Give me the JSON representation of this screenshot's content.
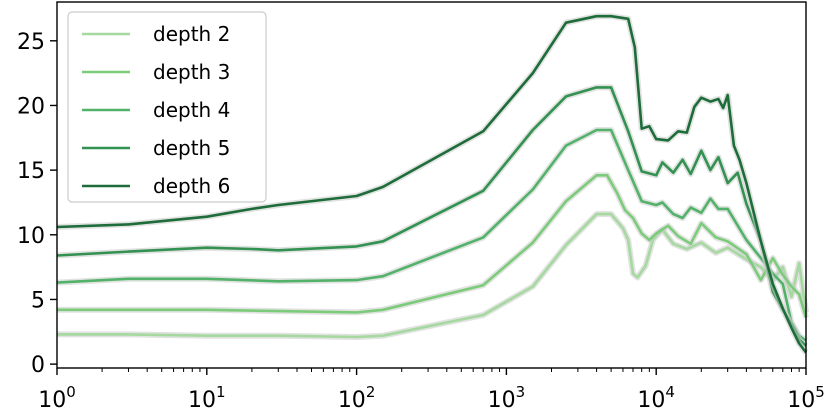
{
  "chart_data": {
    "type": "line",
    "title": "",
    "xlabel": "",
    "ylabel": "",
    "xscale": "log",
    "xlim": [
      1,
      100000
    ],
    "ylim": [
      -0.3,
      28
    ],
    "grid": false,
    "legend_position": "top-left",
    "x_ticks": [
      {
        "value": 1,
        "base": "10",
        "exp": "0"
      },
      {
        "value": 10,
        "base": "10",
        "exp": "1"
      },
      {
        "value": 100,
        "base": "10",
        "exp": "2"
      },
      {
        "value": 1000,
        "base": "10",
        "exp": "3"
      },
      {
        "value": 10000,
        "base": "10",
        "exp": "4"
      },
      {
        "value": 100000,
        "base": "10",
        "exp": "5"
      }
    ],
    "y_ticks": [
      {
        "value": 0,
        "label": "0"
      },
      {
        "value": 5,
        "label": "5"
      },
      {
        "value": 10,
        "label": "10"
      },
      {
        "value": 15,
        "label": "15"
      },
      {
        "value": 20,
        "label": "20"
      },
      {
        "value": 25,
        "label": "25"
      }
    ],
    "series": [
      {
        "name": "depth 2",
        "color": "#a5d99f",
        "points": [
          [
            1,
            2.3
          ],
          [
            3,
            2.3
          ],
          [
            10,
            2.2
          ],
          [
            30,
            2.2
          ],
          [
            100,
            2.1
          ],
          [
            150,
            2.2
          ],
          [
            700,
            3.8
          ],
          [
            1500,
            6.0
          ],
          [
            2500,
            9.2
          ],
          [
            4000,
            11.6
          ],
          [
            5000,
            11.6
          ],
          [
            6000,
            10.5
          ],
          [
            6500,
            9.6
          ],
          [
            7000,
            7.0
          ],
          [
            7500,
            6.7
          ],
          [
            8500,
            7.6
          ],
          [
            9500,
            9.6
          ],
          [
            11000,
            10.4
          ],
          [
            13000,
            9.3
          ],
          [
            16000,
            8.9
          ],
          [
            20000,
            9.4
          ],
          [
            25000,
            8.6
          ],
          [
            30000,
            9.0
          ],
          [
            40000,
            8.1
          ],
          [
            50000,
            7.5
          ],
          [
            60000,
            6.5
          ],
          [
            70000,
            7.5
          ],
          [
            80000,
            5.2
          ],
          [
            90000,
            7.8
          ],
          [
            100000,
            4.0
          ]
        ]
      },
      {
        "name": "depth 3",
        "color": "#7ccb7a",
        "points": [
          [
            1,
            4.2
          ],
          [
            3,
            4.2
          ],
          [
            10,
            4.2
          ],
          [
            30,
            4.1
          ],
          [
            100,
            4.0
          ],
          [
            150,
            4.2
          ],
          [
            700,
            6.1
          ],
          [
            1500,
            9.4
          ],
          [
            2500,
            12.6
          ],
          [
            4000,
            14.6
          ],
          [
            4700,
            14.6
          ],
          [
            5500,
            13.2
          ],
          [
            6200,
            11.9
          ],
          [
            7000,
            11.3
          ],
          [
            8000,
            10.1
          ],
          [
            9000,
            9.6
          ],
          [
            10000,
            10.1
          ],
          [
            12000,
            10.7
          ],
          [
            14000,
            9.9
          ],
          [
            17000,
            9.3
          ],
          [
            20000,
            10.9
          ],
          [
            25000,
            9.8
          ],
          [
            30000,
            9.5
          ],
          [
            40000,
            8.5
          ],
          [
            50000,
            6.5
          ],
          [
            60000,
            8.2
          ],
          [
            70000,
            6.9
          ],
          [
            80000,
            6.0
          ],
          [
            90000,
            5.4
          ],
          [
            100000,
            3.6
          ]
        ]
      },
      {
        "name": "depth 4",
        "color": "#52b26a",
        "points": [
          [
            1,
            6.3
          ],
          [
            3,
            6.6
          ],
          [
            10,
            6.6
          ],
          [
            30,
            6.4
          ],
          [
            100,
            6.5
          ],
          [
            150,
            6.8
          ],
          [
            700,
            9.8
          ],
          [
            1500,
            13.5
          ],
          [
            2500,
            16.9
          ],
          [
            4000,
            18.1
          ],
          [
            5000,
            18.1
          ],
          [
            6500,
            15.0
          ],
          [
            8000,
            12.6
          ],
          [
            10000,
            12.3
          ],
          [
            11000,
            12.5
          ],
          [
            13000,
            11.6
          ],
          [
            15000,
            11.3
          ],
          [
            17000,
            12.1
          ],
          [
            20000,
            11.7
          ],
          [
            23000,
            12.8
          ],
          [
            26000,
            12.0
          ],
          [
            30000,
            12.0
          ],
          [
            40000,
            9.6
          ],
          [
            50000,
            8.2
          ],
          [
            60000,
            7.0
          ],
          [
            70000,
            6.2
          ],
          [
            80000,
            3.2
          ],
          [
            90000,
            2.2
          ],
          [
            100000,
            1.8
          ]
        ]
      },
      {
        "name": "depth 5",
        "color": "#339152",
        "points": [
          [
            1,
            8.4
          ],
          [
            3,
            8.7
          ],
          [
            10,
            9.0
          ],
          [
            20,
            8.9
          ],
          [
            30,
            8.8
          ],
          [
            100,
            9.1
          ],
          [
            150,
            9.5
          ],
          [
            700,
            13.4
          ],
          [
            1500,
            18.1
          ],
          [
            2500,
            20.7
          ],
          [
            4000,
            21.4
          ],
          [
            5000,
            21.4
          ],
          [
            6500,
            18.0
          ],
          [
            8000,
            14.9
          ],
          [
            10000,
            14.6
          ],
          [
            11000,
            15.6
          ],
          [
            13000,
            14.8
          ],
          [
            15000,
            15.8
          ],
          [
            17000,
            14.7
          ],
          [
            20000,
            16.5
          ],
          [
            23000,
            15.0
          ],
          [
            26000,
            16.0
          ],
          [
            30000,
            14.0
          ],
          [
            35000,
            14.8
          ],
          [
            40000,
            12.4
          ],
          [
            50000,
            9.5
          ],
          [
            60000,
            5.6
          ],
          [
            70000,
            4.2
          ],
          [
            80000,
            3.1
          ],
          [
            90000,
            1.9
          ],
          [
            100000,
            1.4
          ]
        ]
      },
      {
        "name": "depth 6",
        "color": "#1d6c3a",
        "points": [
          [
            1,
            10.6
          ],
          [
            3,
            10.8
          ],
          [
            10,
            11.4
          ],
          [
            20,
            12.0
          ],
          [
            30,
            12.3
          ],
          [
            100,
            13.0
          ],
          [
            150,
            13.7
          ],
          [
            700,
            18.0
          ],
          [
            1500,
            22.5
          ],
          [
            2500,
            26.4
          ],
          [
            4000,
            26.9
          ],
          [
            5000,
            26.9
          ],
          [
            6500,
            26.7
          ],
          [
            7200,
            24.5
          ],
          [
            8000,
            18.2
          ],
          [
            9000,
            18.4
          ],
          [
            10000,
            17.4
          ],
          [
            12000,
            17.3
          ],
          [
            14000,
            18.0
          ],
          [
            16000,
            17.9
          ],
          [
            18000,
            19.9
          ],
          [
            20000,
            20.6
          ],
          [
            23000,
            20.3
          ],
          [
            26000,
            20.5
          ],
          [
            28000,
            19.8
          ],
          [
            30000,
            20.8
          ],
          [
            33000,
            16.9
          ],
          [
            36000,
            15.8
          ],
          [
            40000,
            14.0
          ],
          [
            50000,
            9.5
          ],
          [
            60000,
            6.2
          ],
          [
            70000,
            4.3
          ],
          [
            80000,
            2.8
          ],
          [
            90000,
            1.6
          ],
          [
            100000,
            0.9
          ]
        ]
      }
    ]
  }
}
